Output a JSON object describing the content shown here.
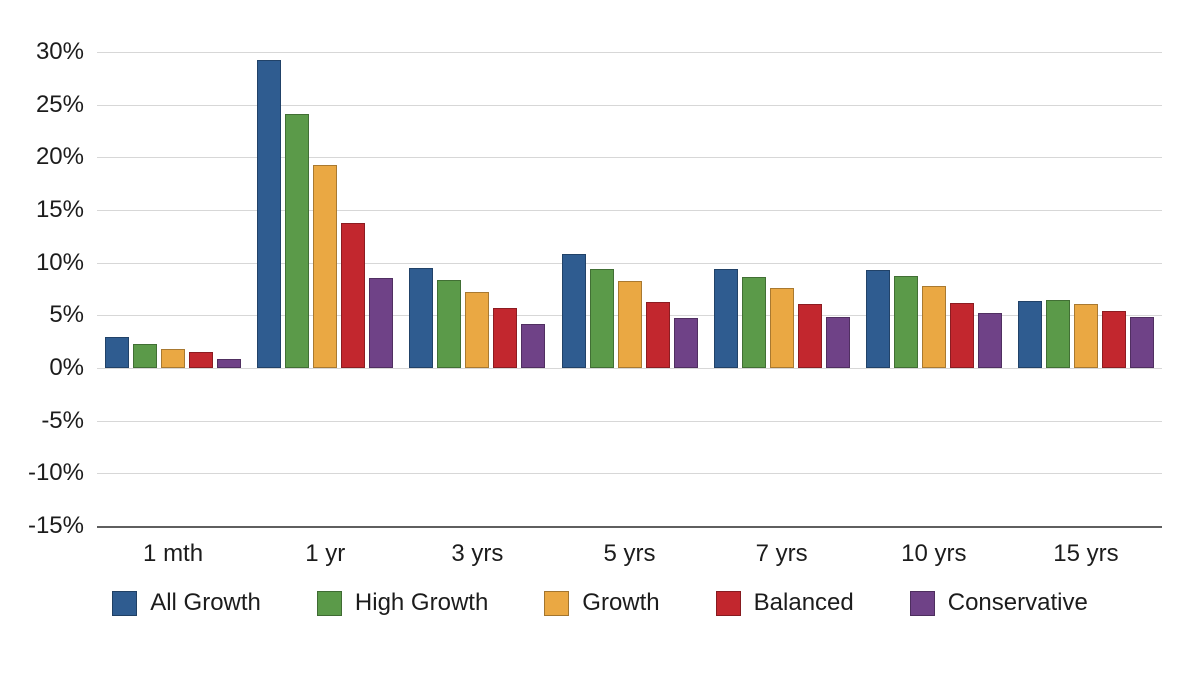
{
  "chart_data": {
    "type": "bar",
    "title": "",
    "xlabel": "",
    "ylabel": "",
    "categories": [
      "1 mth",
      "1 yr",
      "3 yrs",
      "5 yrs",
      "7 yrs",
      "10 yrs",
      "15 yrs"
    ],
    "series": [
      {
        "name": "All Growth",
        "color": "#2f5c90",
        "values": [
          2.9,
          29.2,
          9.5,
          10.8,
          9.4,
          9.3,
          6.4
        ]
      },
      {
        "name": "High Growth",
        "color": "#5b9a49",
        "values": [
          2.3,
          24.1,
          8.4,
          9.4,
          8.6,
          8.7,
          6.5
        ]
      },
      {
        "name": "Growth",
        "color": "#eaa843",
        "values": [
          1.8,
          19.3,
          7.2,
          8.3,
          7.6,
          7.8,
          6.1
        ]
      },
      {
        "name": "Balanced",
        "color": "#c2272e",
        "values": [
          1.5,
          13.8,
          5.7,
          6.3,
          6.1,
          6.2,
          5.4
        ]
      },
      {
        "name": "Conservative",
        "color": "#6f4287",
        "values": [
          0.9,
          8.5,
          4.2,
          4.7,
          4.8,
          5.2,
          4.8
        ]
      }
    ],
    "y_axis": {
      "min": -15,
      "max": 30,
      "ticks": [
        {
          "value": 30,
          "label": "30%"
        },
        {
          "value": 25,
          "label": "25%"
        },
        {
          "value": 20,
          "label": "20%"
        },
        {
          "value": 15,
          "label": "15%"
        },
        {
          "value": 10,
          "label": "10%"
        },
        {
          "value": 5,
          "label": "5%"
        },
        {
          "value": 0,
          "label": "0%"
        },
        {
          "value": -5,
          "label": "-5%"
        },
        {
          "value": -10,
          "label": "-10%"
        },
        {
          "value": -15,
          "label": "-15%"
        }
      ]
    },
    "grid": true,
    "legend_position": "bottom"
  }
}
